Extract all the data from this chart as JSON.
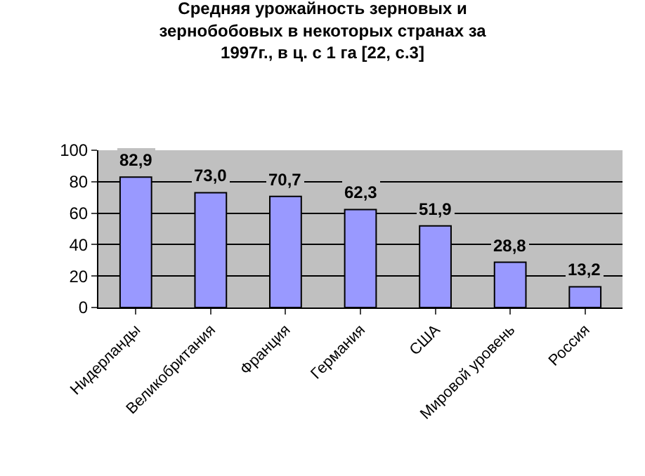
{
  "chart_data": {
    "type": "bar",
    "title": "Средняя урожайность зерновых и\nзернобобовых в некоторых странах за\n1997г., в ц. с 1 га [22, с.3]",
    "categories": [
      "Нидерланды",
      "Великобритания",
      "Франция",
      "Германия",
      "США",
      "Мировой уровень",
      "Россия"
    ],
    "values": [
      82.9,
      73.0,
      70.7,
      62.3,
      51.9,
      28.8,
      13.2
    ],
    "value_labels": [
      "82,9",
      "73,0",
      "70,7",
      "62,3",
      "51,9",
      "28,8",
      "13,2"
    ],
    "color": "#9999ff",
    "ylim": [
      0,
      100
    ],
    "yticks": [
      0,
      20,
      40,
      60,
      80,
      100
    ],
    "grid": "y"
  }
}
